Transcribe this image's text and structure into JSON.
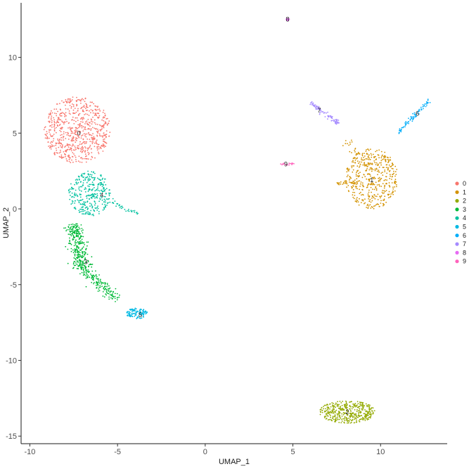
{
  "chart_data": {
    "type": "scatter",
    "title": "",
    "xlabel": "UMAP_1",
    "ylabel": "UMAP_2",
    "xlim": [
      -10.5,
      13.8
    ],
    "ylim": [
      -15.5,
      13.6
    ],
    "x_ticks": [
      -10,
      -5,
      0,
      5,
      10
    ],
    "y_ticks": [
      -15,
      -10,
      -5,
      0,
      5,
      10
    ],
    "grid": false,
    "legend_position": "right",
    "legend": [
      "0",
      "1",
      "2",
      "3",
      "4",
      "5",
      "6",
      "7",
      "8",
      "9"
    ],
    "series": [
      {
        "name": "0",
        "color": "#F8766D",
        "label_pos": [
          -7.2,
          5.0
        ],
        "regions": [
          {
            "shape": "ellipse",
            "cx": -7.3,
            "cy": 5.2,
            "rx": 1.9,
            "ry": 2.2,
            "n": 700
          }
        ]
      },
      {
        "name": "1",
        "color": "#D39200",
        "label_pos": [
          9.5,
          1.9
        ],
        "regions": [
          {
            "shape": "ellipse",
            "cx": 9.5,
            "cy": 2.0,
            "rx": 1.5,
            "ry": 2.0,
            "n": 450
          },
          {
            "shape": "segment",
            "x1": 8.0,
            "y1": 4.5,
            "x2": 9.3,
            "y2": 2.8,
            "w": 0.3,
            "n": 40
          },
          {
            "shape": "segment",
            "x1": 7.5,
            "y1": 1.7,
            "x2": 8.5,
            "y2": 1.7,
            "w": 0.15,
            "n": 25
          }
        ]
      },
      {
        "name": "2",
        "color": "#93AA00",
        "label_pos": [
          8.1,
          -13.4
        ],
        "regions": [
          {
            "shape": "ellipse",
            "cx": 8.1,
            "cy": -13.4,
            "rx": 1.6,
            "ry": 0.75,
            "n": 420
          }
        ]
      },
      {
        "name": "3",
        "color": "#00BA38",
        "label_pos": [
          -6.8,
          -3.5
        ],
        "regions": [
          {
            "shape": "segment",
            "x1": -7.5,
            "y1": -1.0,
            "x2": -7.0,
            "y2": -4.0,
            "w": 0.5,
            "n": 300
          },
          {
            "shape": "segment",
            "x1": -7.0,
            "y1": -4.0,
            "x2": -5.0,
            "y2": -6.0,
            "w": 0.35,
            "n": 150
          }
        ]
      },
      {
        "name": "4",
        "color": "#00C19F",
        "label_pos": [
          -5.9,
          0.9
        ],
        "regions": [
          {
            "shape": "ellipse",
            "cx": -6.6,
            "cy": 1.0,
            "rx": 1.2,
            "ry": 1.5,
            "n": 330
          },
          {
            "shape": "segment",
            "x1": -5.5,
            "y1": 0.5,
            "x2": -3.8,
            "y2": -0.3,
            "w": 0.15,
            "n": 35
          }
        ]
      },
      {
        "name": "5",
        "color": "#00B9E3",
        "label_pos": [
          -3.7,
          -7.0
        ],
        "regions": [
          {
            "shape": "ellipse",
            "cx": -3.9,
            "cy": -6.9,
            "rx": 0.6,
            "ry": 0.35,
            "n": 110
          }
        ]
      },
      {
        "name": "6",
        "color": "#00ADFA",
        "label_pos": [
          12.1,
          6.3
        ],
        "regions": [
          {
            "shape": "segment",
            "x1": 11.0,
            "y1": 5.0,
            "x2": 12.8,
            "y2": 7.2,
            "w": 0.15,
            "n": 85
          }
        ]
      },
      {
        "name": "7",
        "color": "#A58AFF",
        "label_pos": [
          6.5,
          6.5
        ],
        "regions": [
          {
            "shape": "segment",
            "x1": 6.0,
            "y1": 7.0,
            "x2": 7.6,
            "y2": 5.6,
            "w": 0.15,
            "n": 85
          }
        ]
      },
      {
        "name": "8",
        "color": "#E76BF3",
        "label_pos": [
          4.7,
          12.5
        ],
        "regions": [
          {
            "shape": "ellipse",
            "cx": 4.7,
            "cy": 12.5,
            "rx": 0.1,
            "ry": 0.1,
            "n": 14
          }
        ]
      },
      {
        "name": "9",
        "color": "#FF62BC",
        "label_pos": [
          4.6,
          2.95
        ],
        "regions": [
          {
            "shape": "ellipse",
            "cx": 4.7,
            "cy": 2.95,
            "rx": 0.4,
            "ry": 0.08,
            "n": 18
          }
        ]
      }
    ]
  }
}
